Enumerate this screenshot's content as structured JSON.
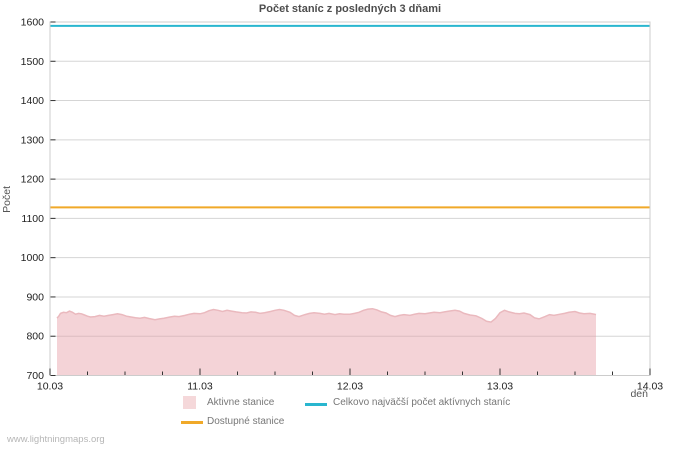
{
  "page": {
    "watermark": "www.lightningmaps.org"
  },
  "chart_data": {
    "type": "area",
    "title": "Počet staníc z posledných 3 dňami",
    "xlabel": "deň",
    "ylabel": "Počet",
    "ylim": [
      700,
      1600
    ],
    "ytick_step": 100,
    "x_range": [
      0,
      4
    ],
    "xtick_labels": [
      "10.03",
      "11.03",
      "12.03",
      "13.03",
      "14.03"
    ],
    "minor_xtick_interval": 0.25,
    "grid": "horizontal-only",
    "legend_position": "bottom-center",
    "colors": {
      "background": "#ffffff",
      "grid": "#d5d5d5",
      "border": "#cccccc",
      "tick": "#333333",
      "tick_label": "#222222",
      "title": "#4d4d4d",
      "axis_label": "#555555",
      "legend_text": "#777777",
      "watermark": "#b6b6b6",
      "active_fill": "#f5d8da",
      "active_edge": "#eab9be",
      "max_line": "#29b6cf",
      "available_line": "#f0a929"
    },
    "series": [
      {
        "name": "Aktivne stanice",
        "type": "area",
        "fill": "rgba(231,158,166,0.45)",
        "edge_color": "#eab9be",
        "points": [
          [
            0.047,
            846
          ],
          [
            0.06,
            852
          ],
          [
            0.07,
            858
          ],
          [
            0.09,
            861
          ],
          [
            0.11,
            860
          ],
          [
            0.13,
            864
          ],
          [
            0.15,
            861
          ],
          [
            0.17,
            856
          ],
          [
            0.19,
            858
          ],
          [
            0.21,
            857
          ],
          [
            0.23,
            854
          ],
          [
            0.25,
            851
          ],
          [
            0.27,
            849
          ],
          [
            0.3,
            850
          ],
          [
            0.33,
            853
          ],
          [
            0.36,
            851
          ],
          [
            0.39,
            853
          ],
          [
            0.42,
            855
          ],
          [
            0.45,
            857
          ],
          [
            0.48,
            855
          ],
          [
            0.51,
            851
          ],
          [
            0.54,
            849
          ],
          [
            0.57,
            847
          ],
          [
            0.6,
            846
          ],
          [
            0.63,
            848
          ],
          [
            0.66,
            845
          ],
          [
            0.7,
            842
          ],
          [
            0.73,
            844
          ],
          [
            0.76,
            846
          ],
          [
            0.8,
            849
          ],
          [
            0.83,
            851
          ],
          [
            0.86,
            850
          ],
          [
            0.9,
            853
          ],
          [
            0.93,
            856
          ],
          [
            0.96,
            858
          ],
          [
            1.0,
            857
          ],
          [
            1.03,
            860
          ],
          [
            1.06,
            865
          ],
          [
            1.09,
            868
          ],
          [
            1.12,
            866
          ],
          [
            1.15,
            863
          ],
          [
            1.18,
            866
          ],
          [
            1.21,
            864
          ],
          [
            1.24,
            862
          ],
          [
            1.28,
            860
          ],
          [
            1.31,
            859
          ],
          [
            1.34,
            862
          ],
          [
            1.37,
            861
          ],
          [
            1.4,
            858
          ],
          [
            1.43,
            860
          ],
          [
            1.47,
            863
          ],
          [
            1.5,
            866
          ],
          [
            1.53,
            868
          ],
          [
            1.56,
            866
          ],
          [
            1.6,
            861
          ],
          [
            1.63,
            853
          ],
          [
            1.66,
            850
          ],
          [
            1.7,
            855
          ],
          [
            1.73,
            858
          ],
          [
            1.76,
            860
          ],
          [
            1.8,
            858
          ],
          [
            1.83,
            856
          ],
          [
            1.86,
            858
          ],
          [
            1.9,
            855
          ],
          [
            1.93,
            857
          ],
          [
            1.96,
            856
          ],
          [
            2.0,
            856
          ],
          [
            2.03,
            858
          ],
          [
            2.06,
            861
          ],
          [
            2.09,
            866
          ],
          [
            2.12,
            869
          ],
          [
            2.15,
            870
          ],
          [
            2.18,
            867
          ],
          [
            2.21,
            862
          ],
          [
            2.24,
            859
          ],
          [
            2.27,
            853
          ],
          [
            2.3,
            850
          ],
          [
            2.33,
            853
          ],
          [
            2.36,
            855
          ],
          [
            2.4,
            853
          ],
          [
            2.43,
            856
          ],
          [
            2.46,
            858
          ],
          [
            2.5,
            857
          ],
          [
            2.53,
            859
          ],
          [
            2.56,
            861
          ],
          [
            2.6,
            860
          ],
          [
            2.63,
            862
          ],
          [
            2.66,
            864
          ],
          [
            2.7,
            866
          ],
          [
            2.73,
            864
          ],
          [
            2.76,
            858
          ],
          [
            2.8,
            854
          ],
          [
            2.84,
            852
          ],
          [
            2.88,
            845
          ],
          [
            2.91,
            838
          ],
          [
            2.94,
            836
          ],
          [
            2.97,
            845
          ],
          [
            3.0,
            860
          ],
          [
            3.03,
            866
          ],
          [
            3.06,
            862
          ],
          [
            3.1,
            858
          ],
          [
            3.13,
            857
          ],
          [
            3.16,
            859
          ],
          [
            3.2,
            855
          ],
          [
            3.23,
            847
          ],
          [
            3.26,
            844
          ],
          [
            3.3,
            850
          ],
          [
            3.33,
            855
          ],
          [
            3.36,
            853
          ],
          [
            3.4,
            856
          ],
          [
            3.43,
            858
          ],
          [
            3.46,
            861
          ],
          [
            3.5,
            863
          ],
          [
            3.53,
            859
          ],
          [
            3.56,
            857
          ],
          [
            3.6,
            858
          ],
          [
            3.63,
            856
          ],
          [
            3.64,
            855
          ]
        ]
      },
      {
        "name": "Celkovo najväčší počet aktívnych staníc",
        "type": "hline",
        "color": "#29b6cf",
        "value": 1590
      },
      {
        "name": "Dostupné stanice",
        "type": "hline",
        "color": "#f0a929",
        "value": 1128
      }
    ]
  }
}
